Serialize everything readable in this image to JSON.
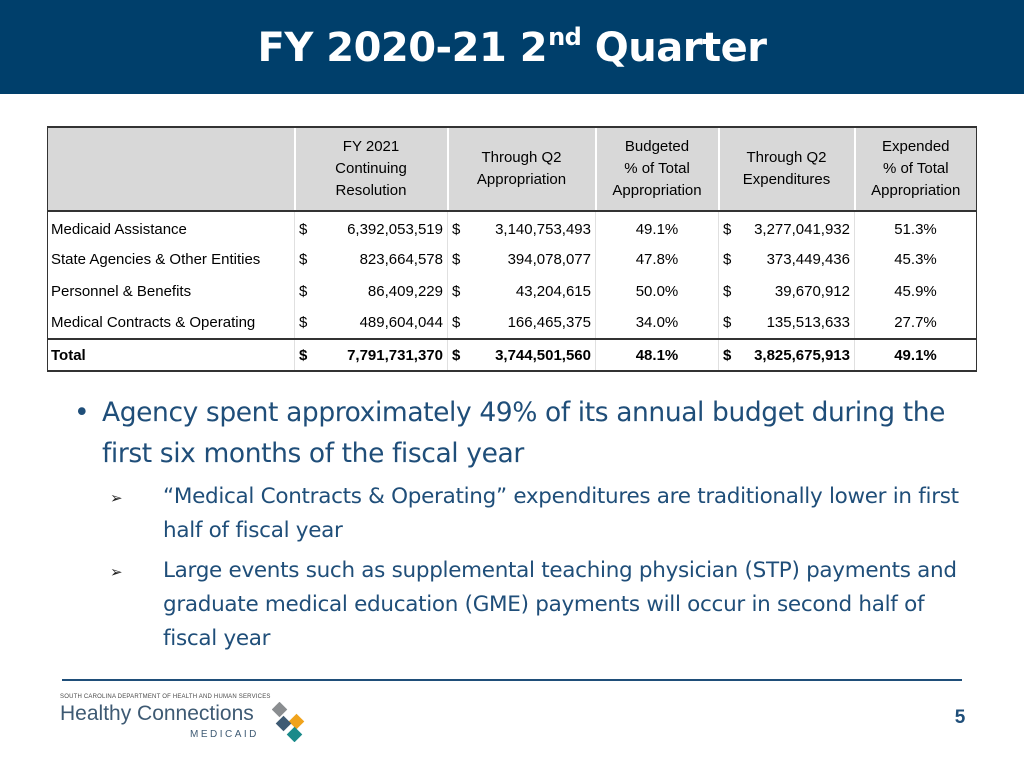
{
  "header": {
    "title_main": "FY 2020-21 2",
    "title_sup": "nd",
    "title_end": "Quarter"
  },
  "table": {
    "columns": [
      {
        "lines": [
          "FY 2021",
          "Continuing",
          "Resolution"
        ]
      },
      {
        "lines": [
          "Through Q2",
          "Appropriation"
        ]
      },
      {
        "lines": [
          "Budgeted",
          "% of Total",
          "Appropriation"
        ]
      },
      {
        "lines": [
          "Through Q2",
          "Expenditures"
        ]
      },
      {
        "lines": [
          "Expended",
          "% of Total",
          "Appropriation"
        ]
      }
    ],
    "rows": [
      {
        "label": "Medicaid Assistance",
        "cr_sym": "$",
        "cr": "6,392,053,519",
        "approp_sym": "$",
        "approp": "3,140,753,493",
        "budget_pct": "49.1%",
        "exp_sym": "$",
        "exp": "3,277,041,932",
        "exp_pct": "51.3%"
      },
      {
        "label": "State Agencies & Other Entities",
        "cr_sym": "$",
        "cr": "823,664,578",
        "approp_sym": "$",
        "approp": "394,078,077",
        "budget_pct": "47.8%",
        "exp_sym": "$",
        "exp": "373,449,436",
        "exp_pct": "45.3%"
      },
      {
        "label": "Personnel & Benefits",
        "cr_sym": "$",
        "cr": "86,409,229",
        "approp_sym": "$",
        "approp": "43,204,615",
        "budget_pct": "50.0%",
        "exp_sym": "$",
        "exp": "39,670,912",
        "exp_pct": "45.9%"
      },
      {
        "label": "Medical Contracts & Operating",
        "cr_sym": "$",
        "cr": "489,604,044",
        "approp_sym": "$",
        "approp": "166,465,375",
        "budget_pct": "34.0%",
        "exp_sym": "$",
        "exp": "135,513,633",
        "exp_pct": "27.7%"
      }
    ],
    "total": {
      "label": "Total",
      "cr_sym": "$",
      "cr": "7,791,731,370",
      "approp_sym": "$",
      "approp": "3,744,501,560",
      "budget_pct": "48.1%",
      "exp_sym": "$",
      "exp": "3,825,675,913",
      "exp_pct": "49.1%"
    }
  },
  "bullets": {
    "main": "Agency spent approximately 49% of its annual budget during the first six months of the fiscal year",
    "subs": [
      "“Medical Contracts & Operating” expenditures are traditionally lower in first half of fiscal year",
      "Large events such as supplemental teaching physician (STP) payments and graduate medical education (GME) payments will occur in second half of fiscal year"
    ]
  },
  "footer": {
    "logo_dept": "SOUTH CAROLINA DEPARTMENT OF HEALTH AND HUMAN SERVICES",
    "logo_name": "Healthy Connections",
    "logo_sub": "MEDICAID",
    "logo_colors": [
      "#8a8d90",
      "#f0a31c",
      "#1a8a8a",
      "#3e5a73"
    ],
    "page_number": "5"
  }
}
